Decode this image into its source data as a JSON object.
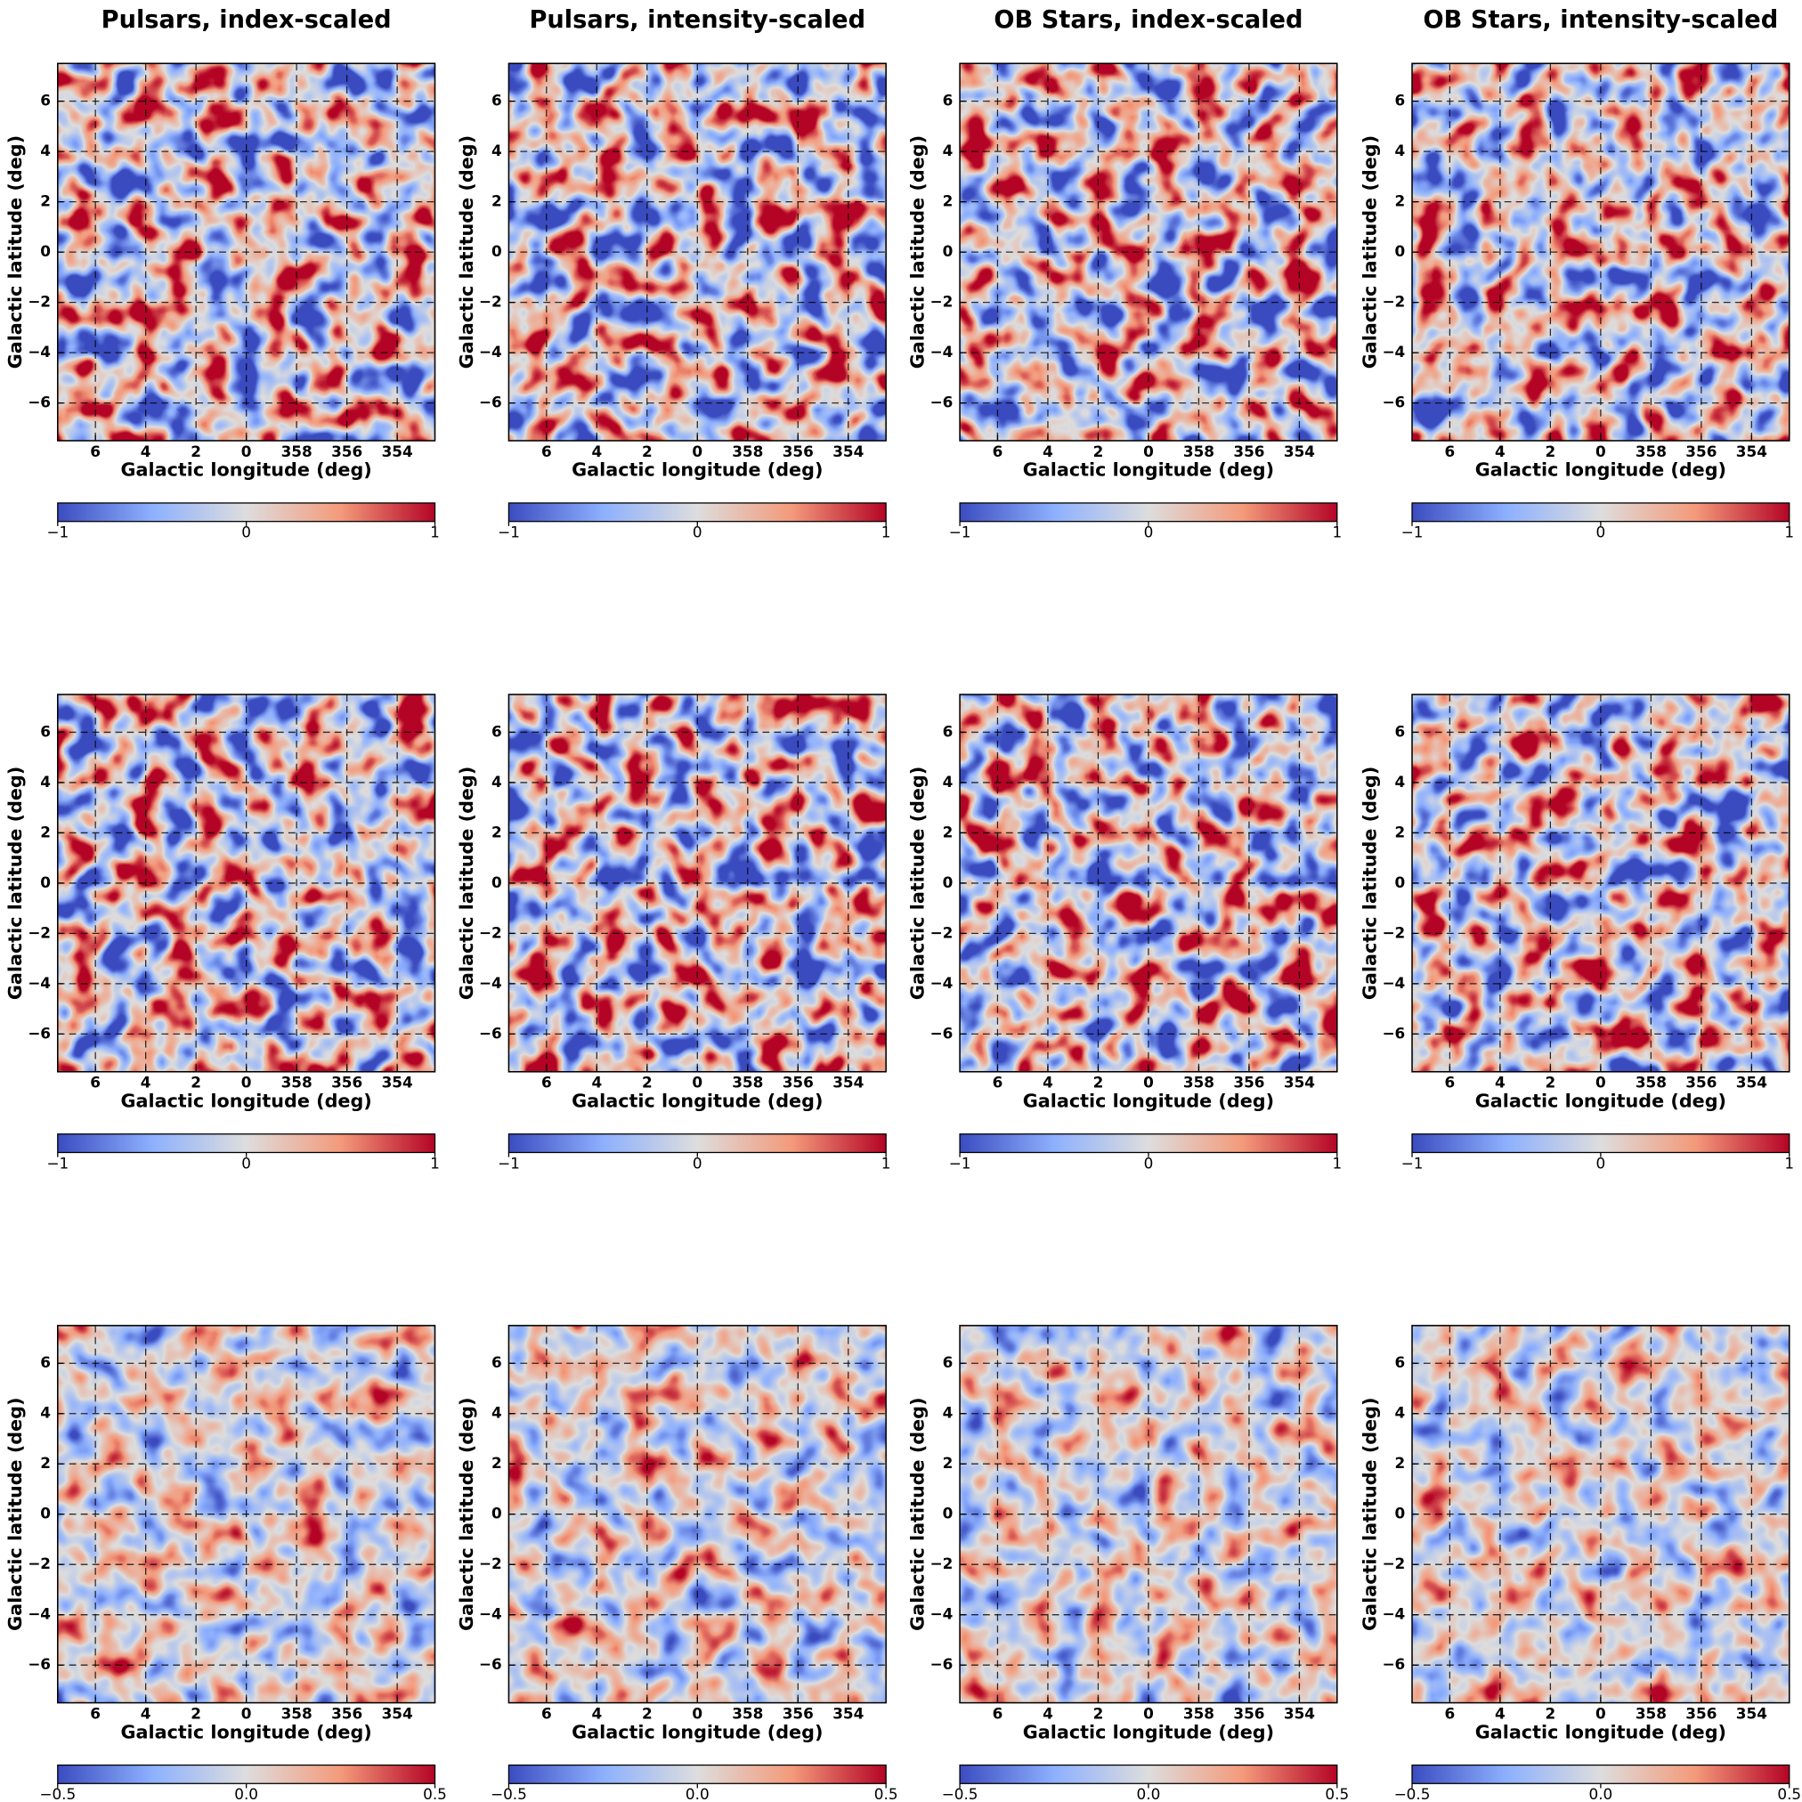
{
  "chart_data": [
    {
      "type": "heatmap",
      "title": "Pulsars, index-scaled",
      "xlabel": "Galactic longitude (deg)",
      "ylabel": "Galactic latitude (deg)",
      "xlim": [
        7.5,
        -7.5
      ],
      "ylim": [
        -7.5,
        7.5
      ],
      "xticks": [
        6,
        4,
        2,
        0,
        {
          "value": -2,
          "label": "358"
        },
        {
          "value": -4,
          "label": "356"
        },
        {
          "value": -6,
          "label": "354"
        }
      ],
      "yticks": [
        {
          "value": -6,
          "label": "−6"
        },
        {
          "value": -4,
          "label": "−4"
        },
        {
          "value": -2,
          "label": "−2"
        },
        0,
        2,
        4,
        6
      ],
      "grid": true,
      "colormap": "coolwarm",
      "clim": [
        -1,
        1
      ],
      "cticks": [
        {
          "value": -1,
          "label": "−1"
        },
        0,
        1
      ]
    },
    {
      "type": "heatmap",
      "title": "Pulsars, intensity-scaled",
      "xlabel": "Galactic longitude (deg)",
      "ylabel": "Galactic latitude (deg)",
      "xlim": [
        7.5,
        -7.5
      ],
      "ylim": [
        -7.5,
        7.5
      ],
      "xticks": [
        6,
        4,
        2,
        0,
        {
          "value": -2,
          "label": "358"
        },
        {
          "value": -4,
          "label": "356"
        },
        {
          "value": -6,
          "label": "354"
        }
      ],
      "yticks": [
        {
          "value": -6,
          "label": "−6"
        },
        {
          "value": -4,
          "label": "−4"
        },
        {
          "value": -2,
          "label": "−2"
        },
        0,
        2,
        4,
        6
      ],
      "grid": true,
      "colormap": "coolwarm",
      "clim": [
        -1,
        1
      ],
      "cticks": [
        {
          "value": -1,
          "label": "−1"
        },
        0,
        1
      ]
    },
    {
      "type": "heatmap",
      "title": "OB Stars, index-scaled",
      "xlabel": "Galactic longitude (deg)",
      "ylabel": "Galactic latitude (deg)",
      "xlim": [
        7.5,
        -7.5
      ],
      "ylim": [
        -7.5,
        7.5
      ],
      "xticks": [
        6,
        4,
        2,
        0,
        {
          "value": -2,
          "label": "358"
        },
        {
          "value": -4,
          "label": "356"
        },
        {
          "value": -6,
          "label": "354"
        }
      ],
      "yticks": [
        {
          "value": -6,
          "label": "−6"
        },
        {
          "value": -4,
          "label": "−4"
        },
        {
          "value": -2,
          "label": "−2"
        },
        0,
        2,
        4,
        6
      ],
      "grid": true,
      "colormap": "coolwarm",
      "clim": [
        -1,
        1
      ],
      "cticks": [
        {
          "value": -1,
          "label": "−1"
        },
        0,
        1
      ]
    },
    {
      "type": "heatmap",
      "title": "OB Stars, intensity-scaled",
      "xlabel": "Galactic longitude (deg)",
      "ylabel": "Galactic latitude (deg)",
      "xlim": [
        7.5,
        -7.5
      ],
      "ylim": [
        -7.5,
        7.5
      ],
      "xticks": [
        6,
        4,
        2,
        0,
        {
          "value": -2,
          "label": "358"
        },
        {
          "value": -4,
          "label": "356"
        },
        {
          "value": -6,
          "label": "354"
        }
      ],
      "yticks": [
        {
          "value": -6,
          "label": "−6"
        },
        {
          "value": -4,
          "label": "−4"
        },
        {
          "value": -2,
          "label": "−2"
        },
        0,
        2,
        4,
        6
      ],
      "grid": true,
      "colormap": "coolwarm",
      "clim": [
        -1,
        1
      ],
      "cticks": [
        {
          "value": -1,
          "label": "−1"
        },
        0,
        1
      ]
    },
    {
      "type": "heatmap",
      "xlabel": "Galactic longitude (deg)",
      "ylabel": "Galactic latitude (deg)",
      "xlim": [
        7.5,
        -7.5
      ],
      "ylim": [
        -7.5,
        7.5
      ],
      "xticks": [
        6,
        4,
        2,
        0,
        {
          "value": -2,
          "label": "358"
        },
        {
          "value": -4,
          "label": "356"
        },
        {
          "value": -6,
          "label": "354"
        }
      ],
      "yticks": [
        {
          "value": -6,
          "label": "−6"
        },
        {
          "value": -4,
          "label": "−4"
        },
        {
          "value": -2,
          "label": "−2"
        },
        0,
        2,
        4,
        6
      ],
      "grid": true,
      "colormap": "coolwarm",
      "clim": [
        -1,
        1
      ],
      "cticks": [
        {
          "value": -1,
          "label": "−1"
        },
        0,
        1
      ]
    },
    {
      "type": "heatmap",
      "xlabel": "Galactic longitude (deg)",
      "ylabel": "Galactic latitude (deg)",
      "xlim": [
        7.5,
        -7.5
      ],
      "ylim": [
        -7.5,
        7.5
      ],
      "xticks": [
        6,
        4,
        2,
        0,
        {
          "value": -2,
          "label": "358"
        },
        {
          "value": -4,
          "label": "356"
        },
        {
          "value": -6,
          "label": "354"
        }
      ],
      "yticks": [
        {
          "value": -6,
          "label": "−6"
        },
        {
          "value": -4,
          "label": "−4"
        },
        {
          "value": -2,
          "label": "−2"
        },
        0,
        2,
        4,
        6
      ],
      "grid": true,
      "colormap": "coolwarm",
      "clim": [
        -1,
        1
      ],
      "cticks": [
        {
          "value": -1,
          "label": "−1"
        },
        0,
        1
      ]
    },
    {
      "type": "heatmap",
      "xlabel": "Galactic longitude (deg)",
      "ylabel": "Galactic latitude (deg)",
      "xlim": [
        7.5,
        -7.5
      ],
      "ylim": [
        -7.5,
        7.5
      ],
      "xticks": [
        6,
        4,
        2,
        0,
        {
          "value": -2,
          "label": "358"
        },
        {
          "value": -4,
          "label": "356"
        },
        {
          "value": -6,
          "label": "354"
        }
      ],
      "yticks": [
        {
          "value": -6,
          "label": "−6"
        },
        {
          "value": -4,
          "label": "−4"
        },
        {
          "value": -2,
          "label": "−2"
        },
        0,
        2,
        4,
        6
      ],
      "grid": true,
      "colormap": "coolwarm",
      "clim": [
        -1,
        1
      ],
      "cticks": [
        {
          "value": -1,
          "label": "−1"
        },
        0,
        1
      ]
    },
    {
      "type": "heatmap",
      "xlabel": "Galactic longitude (deg)",
      "ylabel": "Galactic latitude (deg)",
      "xlim": [
        7.5,
        -7.5
      ],
      "ylim": [
        -7.5,
        7.5
      ],
      "xticks": [
        6,
        4,
        2,
        0,
        {
          "value": -2,
          "label": "358"
        },
        {
          "value": -4,
          "label": "356"
        },
        {
          "value": -6,
          "label": "354"
        }
      ],
      "yticks": [
        {
          "value": -6,
          "label": "−6"
        },
        {
          "value": -4,
          "label": "−4"
        },
        {
          "value": -2,
          "label": "−2"
        },
        0,
        2,
        4,
        6
      ],
      "grid": true,
      "colormap": "coolwarm",
      "clim": [
        -1,
        1
      ],
      "cticks": [
        {
          "value": -1,
          "label": "−1"
        },
        0,
        1
      ]
    },
    {
      "type": "heatmap",
      "xlabel": "Galactic longitude (deg)",
      "ylabel": "Galactic latitude (deg)",
      "xlim": [
        7.5,
        -7.5
      ],
      "ylim": [
        -7.5,
        7.5
      ],
      "xticks": [
        6,
        4,
        2,
        0,
        {
          "value": -2,
          "label": "358"
        },
        {
          "value": -4,
          "label": "356"
        },
        {
          "value": -6,
          "label": "354"
        }
      ],
      "yticks": [
        {
          "value": -6,
          "label": "−6"
        },
        {
          "value": -4,
          "label": "−4"
        },
        {
          "value": -2,
          "label": "−2"
        },
        0,
        2,
        4,
        6
      ],
      "grid": true,
      "colormap": "coolwarm",
      "clim": [
        -0.5,
        0.5
      ],
      "cticks": [
        {
          "value": -0.5,
          "label": "−0.5"
        },
        {
          "value": 0,
          "label": "0.0"
        },
        0.5
      ]
    },
    {
      "type": "heatmap",
      "xlabel": "Galactic longitude (deg)",
      "ylabel": "Galactic latitude (deg)",
      "xlim": [
        7.5,
        -7.5
      ],
      "ylim": [
        -7.5,
        7.5
      ],
      "xticks": [
        6,
        4,
        2,
        0,
        {
          "value": -2,
          "label": "358"
        },
        {
          "value": -4,
          "label": "356"
        },
        {
          "value": -6,
          "label": "354"
        }
      ],
      "yticks": [
        {
          "value": -6,
          "label": "−6"
        },
        {
          "value": -4,
          "label": "−4"
        },
        {
          "value": -2,
          "label": "−2"
        },
        0,
        2,
        4,
        6
      ],
      "grid": true,
      "colormap": "coolwarm",
      "clim": [
        -0.5,
        0.5
      ],
      "cticks": [
        {
          "value": -0.5,
          "label": "−0.5"
        },
        {
          "value": 0,
          "label": "0.0"
        },
        0.5
      ]
    },
    {
      "type": "heatmap",
      "xlabel": "Galactic longitude (deg)",
      "ylabel": "Galactic latitude (deg)",
      "xlim": [
        7.5,
        -7.5
      ],
      "ylim": [
        -7.5,
        7.5
      ],
      "xticks": [
        6,
        4,
        2,
        0,
        {
          "value": -2,
          "label": "358"
        },
        {
          "value": -4,
          "label": "356"
        },
        {
          "value": -6,
          "label": "354"
        }
      ],
      "yticks": [
        {
          "value": -6,
          "label": "−6"
        },
        {
          "value": -4,
          "label": "−4"
        },
        {
          "value": -2,
          "label": "−2"
        },
        0,
        2,
        4,
        6
      ],
      "grid": true,
      "colormap": "coolwarm",
      "clim": [
        -0.5,
        0.5
      ],
      "cticks": [
        {
          "value": -0.5,
          "label": "−0.5"
        },
        {
          "value": 0,
          "label": "0.0"
        },
        0.5
      ]
    },
    {
      "type": "heatmap",
      "xlabel": "Galactic longitude (deg)",
      "ylabel": "Galactic latitude (deg)",
      "xlim": [
        7.5,
        -7.5
      ],
      "ylim": [
        -7.5,
        7.5
      ],
      "xticks": [
        6,
        4,
        2,
        0,
        {
          "value": -2,
          "label": "358"
        },
        {
          "value": -4,
          "label": "356"
        },
        {
          "value": -6,
          "label": "354"
        }
      ],
      "yticks": [
        {
          "value": -6,
          "label": "−6"
        },
        {
          "value": -4,
          "label": "−4"
        },
        {
          "value": -2,
          "label": "−2"
        },
        0,
        2,
        4,
        6
      ],
      "grid": true,
      "colormap": "coolwarm",
      "clim": [
        -0.5,
        0.5
      ],
      "cticks": [
        {
          "value": -0.5,
          "label": "−0.5"
        },
        {
          "value": 0,
          "label": "0.0"
        },
        0.5
      ]
    }
  ]
}
